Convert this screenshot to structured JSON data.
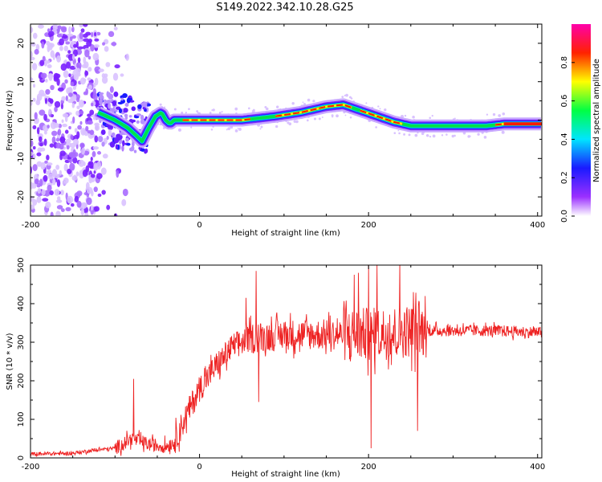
{
  "title": "S149.2022.342.10.28.G25",
  "chart_data": [
    {
      "type": "heatmap",
      "xlabel": "Height of straight line (km)",
      "ylabel": "Frequency (Hz)",
      "xlim": [
        -200,
        405
      ],
      "ylim": [
        -25,
        25
      ],
      "x_ticks": [
        "-200",
        "0",
        "200",
        "400"
      ],
      "y_ticks": [
        "-20",
        "-10",
        "0",
        "10",
        "20"
      ],
      "colorbar": {
        "label": "Normalized spectral amplitude",
        "range": [
          0,
          1
        ],
        "ticks": [
          "0.0",
          "0.2",
          "0.4",
          "0.6",
          "0.8"
        ]
      },
      "ridge": {
        "x": [
          -120,
          -100,
          -85,
          -75,
          -68,
          -60,
          -52,
          -45,
          -40,
          -35,
          -30,
          0,
          50,
          90,
          120,
          150,
          170,
          190,
          210,
          230,
          250,
          270,
          300,
          340,
          360,
          405
        ],
        "y": [
          2,
          0,
          -2,
          -4,
          -5.5,
          -2,
          1,
          2,
          0,
          -1,
          0,
          0,
          0,
          1,
          2,
          3.5,
          4,
          2.5,
          1,
          -0.5,
          -1.5,
          -1.5,
          -1.5,
          -1.5,
          -1,
          -1
        ]
      }
    },
    {
      "type": "line",
      "xlabel": "Height of straight line (km)",
      "ylabel": "SNR (10 * v/v)",
      "xlim": [
        -200,
        405
      ],
      "ylim": [
        0,
        500
      ],
      "x_ticks": [
        "-200",
        "0",
        "200",
        "400"
      ],
      "y_ticks": [
        "0",
        "100",
        "200",
        "300",
        "400",
        "500"
      ],
      "series": [
        {
          "color": "#ee2222",
          "trend": {
            "x": [
              -200,
              -150,
              -125,
              -100,
              -80,
              -60,
              -40,
              -30,
              -20,
              0,
              20,
              40,
              60,
              100,
              150,
              200,
              250,
              300,
              350,
              405
            ],
            "y": [
              10,
              12,
              20,
              25,
              50,
              35,
              30,
              40,
              90,
              180,
              240,
              290,
              310,
              320,
              320,
              320,
              330,
              330,
              330,
              325
            ]
          },
          "spikes": [
            {
              "x": -78,
              "y": 205
            },
            {
              "x": 55,
              "y": 415
            },
            {
              "x": 67,
              "y": 485
            },
            {
              "x": 70,
              "y": 145
            },
            {
              "x": 183,
              "y": 475
            },
            {
              "x": 188,
              "y": 480
            },
            {
              "x": 200,
              "y": 500
            },
            {
              "x": 203,
              "y": 25
            },
            {
              "x": 210,
              "y": 500
            },
            {
              "x": 237,
              "y": 510
            },
            {
              "x": 253,
              "y": 430
            },
            {
              "x": 258,
              "y": 70
            }
          ]
        }
      ]
    }
  ]
}
